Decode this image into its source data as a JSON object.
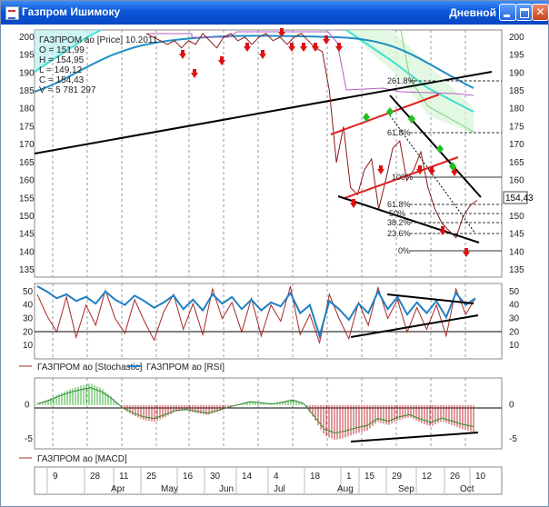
{
  "window": {
    "title": "Газпром Ишимоку",
    "period": "Дневной"
  },
  "colors": {
    "price": "#8b1a1a",
    "stochastic": "#a52a2a",
    "rsi": "#1f7fc4",
    "ma": "#1f8fc4",
    "channel_red": "#e02020",
    "trend_black": "#000000",
    "cloud_cyan": "#40e0d0",
    "cloud_green": "#8fd88f",
    "buy_marker": "#22c022",
    "sell_marker": "#e01010",
    "macd_pos": "#34b034",
    "macd_neg": "#c03030"
  },
  "price_panel": {
    "info": {
      "name": "ГАЗПРОМ ао [Price] 10.2011",
      "open": "O = 151,99",
      "high": "H = 154,95",
      "low": "L = 149,12",
      "close": "C = 154,43",
      "volume": "V = 5 781 297"
    },
    "last_price_label": "154,43",
    "fib_labels": [
      "261.8%",
      "61.8%",
      "100%",
      "61.8%",
      "50%",
      "38.2%",
      "23.6%",
      "0%"
    ],
    "y_ticks": [
      "200",
      "195",
      "190",
      "185",
      "180",
      "175",
      "170",
      "165",
      "160",
      "155",
      "150",
      "145",
      "140",
      "135"
    ]
  },
  "osc_panel": {
    "y_ticks": [
      "50",
      "40",
      "30",
      "20",
      "10"
    ],
    "legend_stoch": "ГАЗПРОМ ао [Stochastic]",
    "legend_rsi": "ГАЗПРОМ ао [RSI]"
  },
  "macd_panel": {
    "y_ticks": [
      "0",
      "-5"
    ],
    "legend": "ГАЗПРОМ ао [MACD]"
  },
  "time_axis": {
    "days": [
      "9",
      "28",
      "11",
      "25",
      "16",
      "30",
      "14",
      "4",
      "18",
      "1",
      "15",
      "29",
      "12",
      "26",
      "10"
    ],
    "months": [
      "Apr",
      "May",
      "Jun",
      "Jul",
      "Aug",
      "Sep",
      "Oct"
    ]
  },
  "chart_data": {
    "type": "line",
    "series": [
      {
        "name": "ГАЗПРОМ ао [Price]",
        "values": [
          201,
          200,
          199,
          198,
          199,
          197,
          199,
          198,
          201,
          199,
          197,
          200,
          201,
          199,
          200,
          198,
          200,
          201,
          199,
          200,
          198,
          200,
          201,
          199,
          197,
          196,
          185,
          165,
          175,
          158,
          156,
          163,
          166,
          152,
          160,
          169,
          171,
          160,
          163,
          168,
          158,
          152,
          148,
          146,
          144,
          150,
          153,
          154.43
        ]
      },
      {
        "name": "ГАЗПРОМ ао [Stochastic]",
        "values": [
          48,
          32,
          20,
          46,
          16,
          40,
          25,
          51,
          30,
          19,
          44,
          28,
          14,
          35,
          48,
          22,
          41,
          18,
          52,
          30,
          42,
          20,
          45,
          17,
          40,
          28,
          54,
          18,
          33,
          12,
          48,
          30,
          15,
          42,
          25,
          53,
          30,
          44,
          20,
          38,
          22,
          40,
          17,
          52,
          33,
          45
        ]
      },
      {
        "name": "ГАЗПРОМ ао [RSI]",
        "values": [
          54,
          50,
          45,
          48,
          43,
          46,
          41,
          50,
          44,
          40,
          47,
          43,
          38,
          42,
          47,
          37,
          44,
          36,
          48,
          41,
          46,
          37,
          44,
          36,
          42,
          39,
          49,
          34,
          40,
          17,
          43,
          37,
          29,
          41,
          34,
          50,
          37,
          46,
          33,
          42,
          34,
          43,
          31,
          49,
          40,
          45
        ]
      },
      {
        "name": "ГАЗПРОМ ао [MACD]",
        "values": [
          0.2,
          0.8,
          1.6,
          2.3,
          2.8,
          3.2,
          2.5,
          1.2,
          -0.5,
          -1.5,
          -2.2,
          -2.5,
          -1.8,
          -1.0,
          -0.8,
          -1.2,
          -1.5,
          -1.0,
          -0.4,
          0.1,
          0.6,
          0.4,
          0.2,
          0.5,
          0.9,
          0.3,
          -2.0,
          -4.5,
          -5.2,
          -4.8,
          -4.2,
          -3.8,
          -2.5,
          -3.0,
          -2.2,
          -1.8,
          -2.6,
          -3.2,
          -2.4,
          -3.0,
          -3.6,
          -4.0
        ]
      }
    ],
    "ylim_price": [
      133,
      202
    ],
    "ylim_osc": [
      0,
      56
    ],
    "ylim_macd": [
      -6.5,
      4
    ],
    "grid": true
  }
}
